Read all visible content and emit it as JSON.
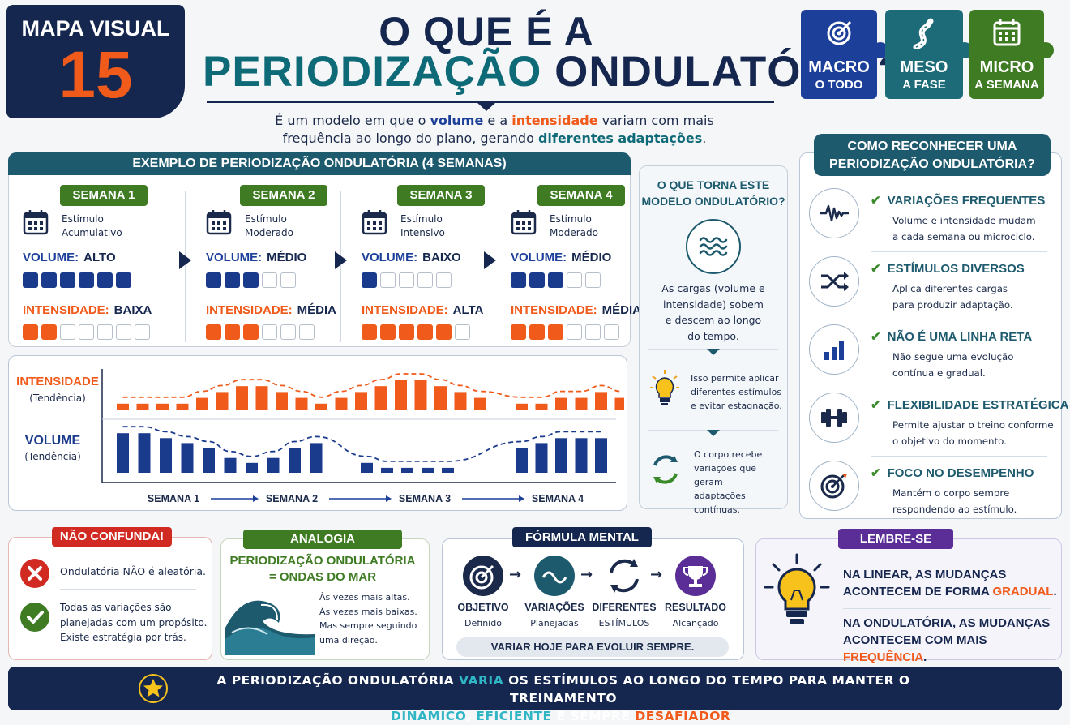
{
  "badge": {
    "label": "MAPA VISUAL",
    "number": "15"
  },
  "title": {
    "line1": "O QUE É A",
    "line2a": "PERIODIZAÇÃO",
    "line2b": "ONDULATÓRIA?"
  },
  "subtitle": {
    "p1": "É um modelo em que o ",
    "volume": "volume",
    "p2": " e a ",
    "intensidade": "intensidade",
    "p3": " variam com mais",
    "p4": "frequência ao longo do plano, gerando ",
    "diff": "diferentes adaptações",
    "p5": "."
  },
  "puzzle": [
    {
      "title": "MACRO",
      "sub": "O TODO",
      "icon": "target-icon",
      "color": "#1c3f9a"
    },
    {
      "title": "MESO",
      "sub": "A FASE",
      "icon": "road-icon",
      "color": "#1d6b78"
    },
    {
      "title": "MICRO",
      "sub": "A SEMANA",
      "icon": "calendar-icon",
      "color": "#3e7b22"
    }
  ],
  "example": {
    "header": "EXEMPLO DE PERIODIZAÇÃO ONDULATÓRIA (4 SEMANAS)",
    "volume_label": "VOLUME:",
    "intensity_label": "INTENSIDADE:",
    "weeks": [
      {
        "title": "SEMANA 1",
        "stim1": "Estímulo",
        "stim2": "Acumulativo",
        "volume": "ALTO",
        "vol_fill": 6,
        "vol_total": 6,
        "intensity": "BAIXA",
        "int_fill": 2,
        "int_total": 7
      },
      {
        "title": "SEMANA 2",
        "stim1": "Estímulo",
        "stim2": "Moderado",
        "volume": "MÉDIO",
        "vol_fill": 3,
        "vol_total": 5,
        "intensity": "MÉDIA",
        "int_fill": 3,
        "int_total": 6
      },
      {
        "title": "SEMANA 3",
        "stim1": "Estímulo",
        "stim2": "Intensivo",
        "volume": "BAIXO",
        "vol_fill": 1,
        "vol_total": 5,
        "intensity": "ALTA",
        "int_fill": 5,
        "int_total": 6
      },
      {
        "title": "SEMANA 4",
        "stim1": "Estímulo",
        "stim2": "Moderado",
        "volume": "MÉDIO",
        "vol_fill": 3,
        "vol_total": 5,
        "intensity": "MÉDIA",
        "int_fill": 3,
        "int_total": 6
      }
    ]
  },
  "chart_data": {
    "type": "bar",
    "series": [
      {
        "name": "INTENSIDADE",
        "values": [
          1,
          1,
          1,
          1,
          2,
          3,
          4,
          4,
          3,
          2,
          1,
          2,
          3,
          4,
          5,
          5,
          4,
          3,
          2,
          1,
          1,
          2,
          2,
          3,
          2
        ]
      },
      {
        "name": "VOLUME",
        "values": [
          8,
          8,
          7,
          6,
          5,
          3,
          2,
          3,
          5,
          6,
          2,
          1,
          1,
          1,
          1,
          5,
          6,
          7,
          7,
          7
        ]
      }
    ],
    "intensity_label": "INTENSIDADE",
    "intensity_sub": "(Tendência)",
    "volume_label": "VOLUME",
    "volume_sub": "(Tendência)",
    "x_labels": [
      "SEMANA 1",
      "SEMANA 2",
      "SEMANA 3",
      "SEMANA 4"
    ],
    "colors": {
      "intensity": "#f05a1a",
      "volume": "#1a3a8c"
    }
  },
  "ondulatorio": {
    "title1": "O QUE TORNA ESTE",
    "title2": "MODELO ONDULATÓRIO?",
    "t1": "As cargas (volume e",
    "t2": "intensidade) sobem",
    "t3": "e descem ao longo",
    "t4": "do tempo.",
    "b1": "Isso permite aplicar",
    "b2": "diferentes estímulos",
    "b3": "e evitar estagnação.",
    "c1": "O corpo recebe",
    "c2": "variações que geram",
    "c3": "adaptações",
    "c4": "contínuas."
  },
  "recognize": {
    "title1": "COMO RECONHECER UMA",
    "title2": "PERIODIZAÇÃO ONDULATÓRIA?",
    "items": [
      {
        "title": "VARIAÇÕES FREQUENTES",
        "d1": "Volume e intensidade mudam",
        "d2": "a cada semana ou microciclo.",
        "icon": "pulse-icon"
      },
      {
        "title": "ESTÍMULOS DIVERSOS",
        "d1": "Aplica diferentes cargas",
        "d2": "para produzir adaptação.",
        "icon": "shuffle-icon"
      },
      {
        "title": "NÃO É UMA LINHA RETA",
        "d1": "Não segue uma evolução",
        "d2": "contínua e gradual.",
        "icon": "bars-icon"
      },
      {
        "title": "FLEXIBILIDADE ESTRATÉGICA",
        "d1": "Permite ajustar o treino conforme",
        "d2": "o objetivo do momento.",
        "icon": "dumbbell-icon"
      },
      {
        "title": "FOCO NO DESEMPENHO",
        "d1": "Mantém o corpo sempre",
        "d2": "respondendo ao estímulo.",
        "icon": "target-icon"
      }
    ]
  },
  "confunda": {
    "title": "NÃO CONFUNDA!",
    "x1": "Ondulatória NÃO é aleatória.",
    "y1": "Todas as variações são",
    "y2": "planejadas com um propósito.",
    "y3": "Existe estratégia por trás."
  },
  "analogia": {
    "title": "ANALOGIA",
    "h1": "PERIODIZAÇÃO ONDULATÓRIA",
    "h2": "= ONDAS DO MAR",
    "l1": "Às vezes mais altas.",
    "l2": "Às vezes mais baixas.",
    "l3": "Mas sempre seguindo",
    "l4": "uma direção."
  },
  "formula": {
    "title": "FÓRMULA MENTAL",
    "steps": [
      {
        "t": "OBJETIVO",
        "s": "Definido"
      },
      {
        "t": "VARIAÇÕES",
        "s": "Planejadas"
      },
      {
        "t": "DIFERENTES",
        "s": "ESTÍMULOS"
      },
      {
        "t": "RESULTADO",
        "s": "Alcançado"
      }
    ],
    "footer": "VARIAR HOJE PARA EVOLUIR SEMPRE."
  },
  "lembre": {
    "title": "LEMBRE-SE",
    "a1": "NA LINEAR, AS MUDANÇAS",
    "a2": "ACONTECEM DE FORMA ",
    "a3": "GRADUAL",
    "a4": ".",
    "b1": "NA ONDULATÓRIA, AS MUDANÇAS",
    "b2": "ACONTECEM COM MAIS ",
    "b3": "FREQUÊNCIA",
    "b4": "."
  },
  "banner": {
    "p1": "A PERIODIZAÇÃO ONDULATÓRIA ",
    "p2": "VARIA",
    "p3": " OS ESTÍMULOS AO LONGO DO TEMPO PARA MANTER O TREINAMENTO",
    "p4": "DINÂMICO",
    "p5": ", ",
    "p6": "EFICIENTE",
    "p7": " E SEMPRE ",
    "p8": "DESAFIADOR",
    "p9": "."
  }
}
